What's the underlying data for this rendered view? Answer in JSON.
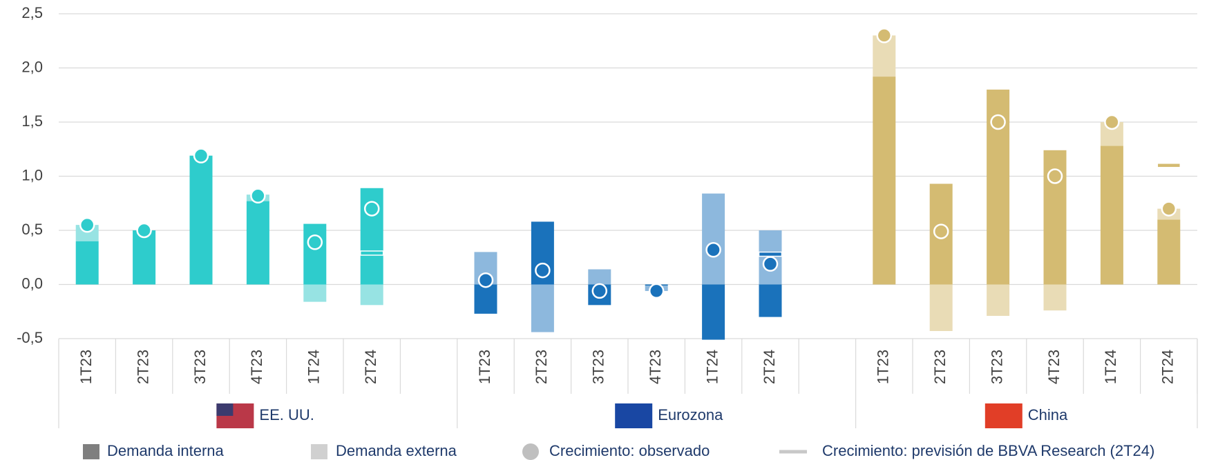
{
  "chart_data": {
    "type": "bar",
    "stacked": true,
    "ylim": [
      -0.5,
      2.5
    ],
    "yticks": [
      {
        "value": -0.5,
        "label": "-0,5"
      },
      {
        "value": 0,
        "label": "0,0"
      },
      {
        "value": 0.5,
        "label": "0,5"
      },
      {
        "value": 1,
        "label": "1,0"
      },
      {
        "value": 1.5,
        "label": "1,5"
      },
      {
        "value": 2,
        "label": "2,0"
      },
      {
        "value": 2.5,
        "label": "2,5"
      }
    ],
    "grid": true,
    "legend": [
      {
        "name": "Demanda interna",
        "color": "#7f7f7f"
      },
      {
        "name": "Demanda externa",
        "color": "#d0d0d0"
      },
      {
        "name": "Crecimiento: observado",
        "color": "#bfbfbf"
      },
      {
        "name": "Crecimiento: previsión de BBVA Research (2T24)",
        "color": "#c8c8c8"
      }
    ],
    "groups": [
      {
        "name": "EE. UU.",
        "color": "#2ecccc",
        "light_color": "#97e3e3",
        "categories": [
          "1T23",
          "2T23",
          "3T23",
          "4T23",
          "1T24",
          "2T24"
        ],
        "internal": [
          0.4,
          0.5,
          1.19,
          0.77,
          0.56,
          0.89
        ],
        "external": [
          0.15,
          0,
          0,
          0.06,
          -0.16,
          -0.19
        ],
        "observed": [
          0.55,
          0.5,
          1.19,
          0.82,
          0.39,
          0.7
        ],
        "forecast": [
          null,
          null,
          null,
          null,
          null,
          0.29
        ]
      },
      {
        "name": "Eurozona",
        "color": "#1a72bb",
        "light_color": "#8db8dd",
        "categories": [
          "1T23",
          "2T23",
          "3T23",
          "4T23",
          "1T24",
          "2T24"
        ],
        "internal": [
          -0.27,
          0.58,
          -0.19,
          -0.01,
          -0.51,
          -0.3
        ],
        "external": [
          0.3,
          -0.44,
          0.14,
          -0.05,
          0.84,
          0.5
        ],
        "observed": [
          0.04,
          0.13,
          -0.06,
          -0.06,
          0.32,
          0.19
        ],
        "forecast": [
          null,
          null,
          null,
          null,
          null,
          0.28
        ]
      },
      {
        "name": "China",
        "color": "#d4bb72",
        "light_color": "#e9dcb6",
        "categories": [
          "1T23",
          "2T23",
          "3T23",
          "4T23",
          "1T24",
          "2T24"
        ],
        "internal": [
          1.92,
          0.93,
          1.8,
          1.24,
          1.28,
          0.6
        ],
        "external": [
          0.38,
          -0.43,
          -0.29,
          -0.24,
          0.22,
          0.1
        ],
        "observed": [
          2.3,
          0.49,
          1.5,
          1.0,
          1.5,
          0.7
        ],
        "forecast": [
          null,
          null,
          null,
          null,
          null,
          1.1
        ]
      }
    ]
  }
}
